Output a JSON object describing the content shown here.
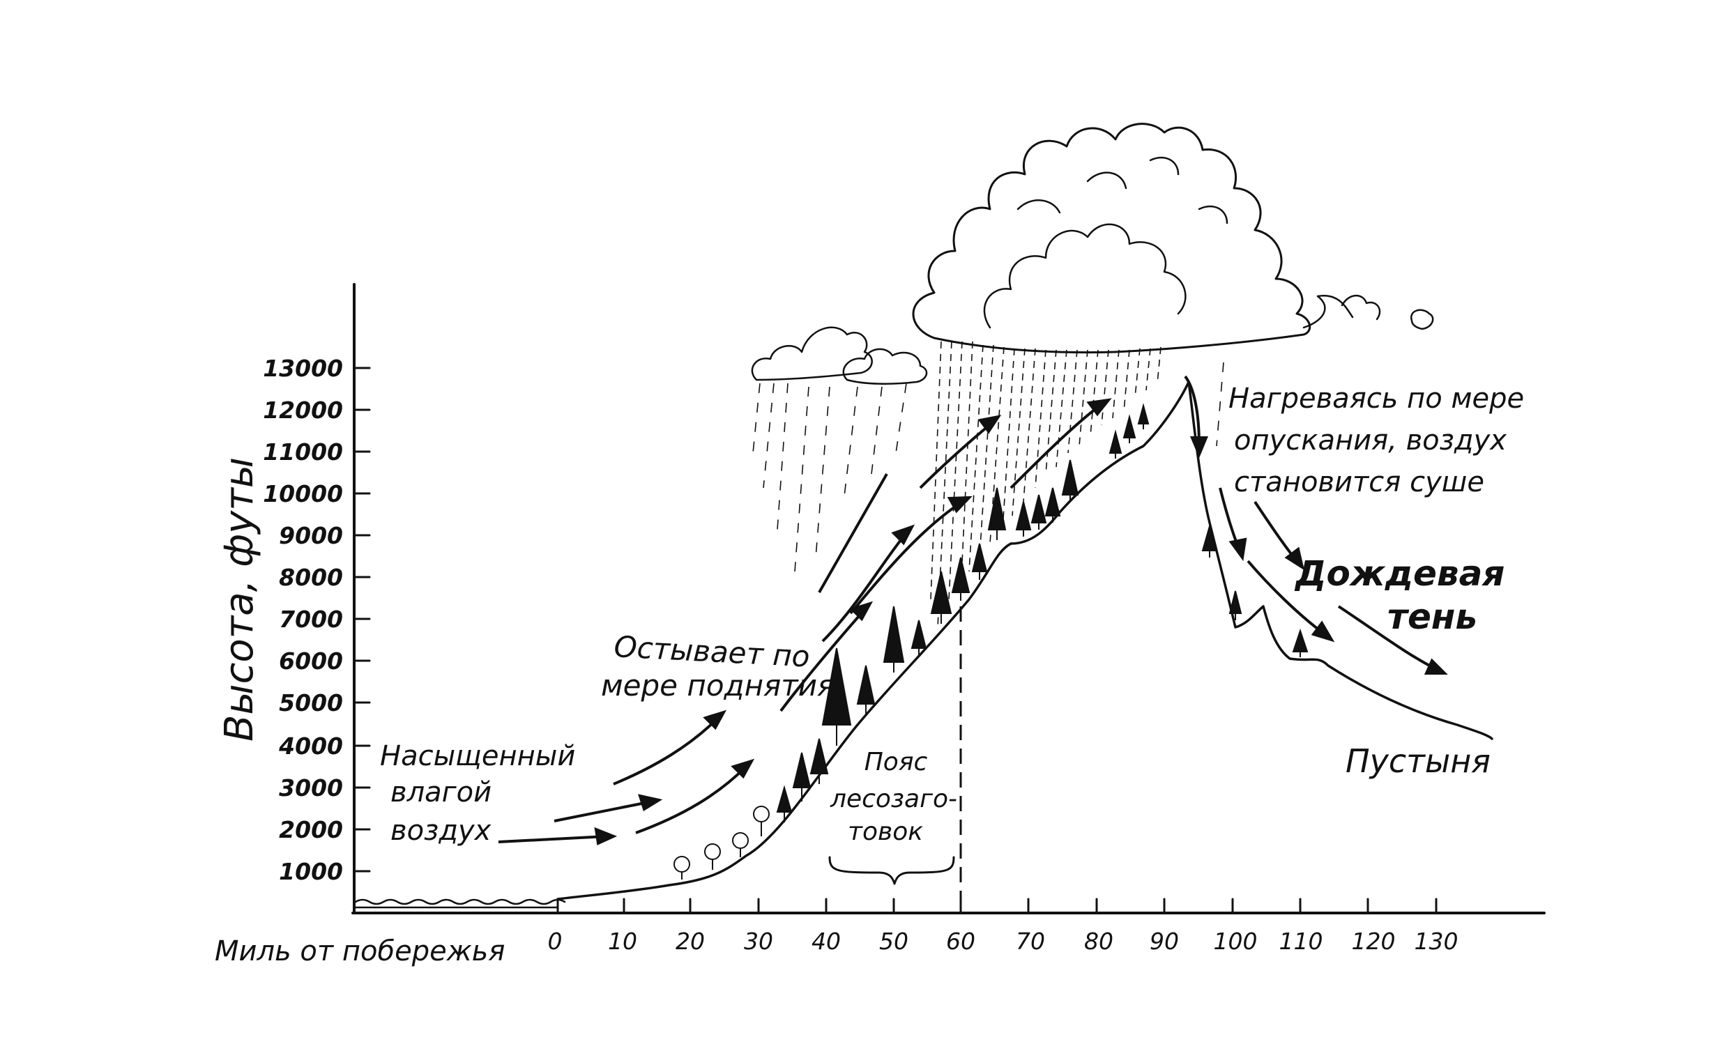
{
  "diagram": {
    "y_axis_title": "Высота, футы",
    "x_axis_title": "Миль от побережья",
    "y_ticks": [
      "1000",
      "2000",
      "3000",
      "4000",
      "5000",
      "6000",
      "7000",
      "8000",
      "9000",
      "10000",
      "11000",
      "12000",
      "13000"
    ],
    "x_ticks": [
      "0",
      "10",
      "20",
      "30",
      "40",
      "50",
      "60",
      "70",
      "80",
      "90",
      "100",
      "110",
      "120",
      "130"
    ],
    "labels": {
      "saturated_air": [
        "Насыщенный",
        "влагой",
        "воздух"
      ],
      "cools_rising": [
        "Остывает по",
        "мере поднятия"
      ],
      "logging_belt": [
        "Пояс",
        "лесозаго-",
        "товок"
      ],
      "warming_descent": [
        "Нагреваясь по мере",
        "опускания, воздух",
        "становится суше"
      ],
      "rain_shadow": [
        "Дождевая",
        "тень"
      ],
      "desert": "Пустыня"
    }
  }
}
